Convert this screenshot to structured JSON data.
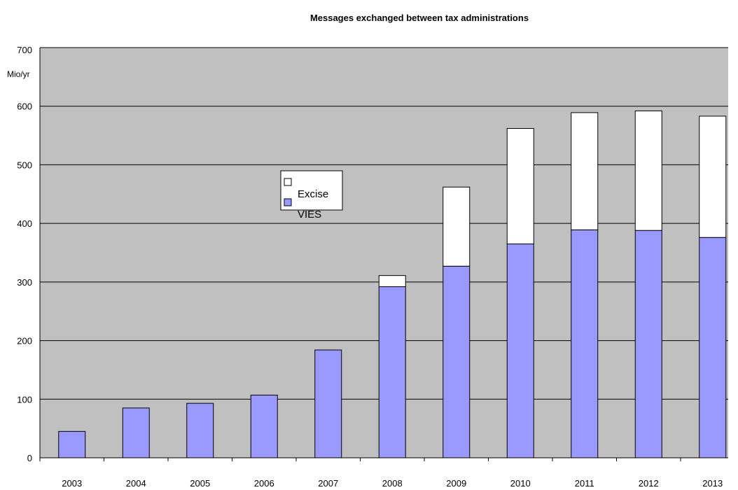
{
  "chart_data": {
    "type": "bar",
    "stacked": true,
    "title": "Messages exchanged between tax administrations",
    "ylabel": "Mio/yr",
    "ylim": [
      0,
      700
    ],
    "yticks": [
      0,
      100,
      200,
      300,
      400,
      500,
      600,
      700
    ],
    "grid": true,
    "legend_position": "center-left",
    "categories": [
      "2003",
      "2004",
      "2005",
      "2006",
      "2007",
      "2008",
      "2009",
      "2010",
      "2011",
      "2012",
      "2013"
    ],
    "series": [
      {
        "name": "VIES",
        "color": "#9999ff",
        "values": [
          45,
          85,
          93,
          107,
          184,
          292,
          327,
          365,
          389,
          388,
          376
        ]
      },
      {
        "name": "Excise",
        "color": "#ffffff",
        "values": [
          0,
          0,
          0,
          0,
          0,
          19,
          135,
          197,
          200,
          204,
          207
        ]
      }
    ],
    "colors": {
      "plot_background": "#c0c0c0",
      "grid": "#000000",
      "bar_border": "#000000"
    }
  }
}
